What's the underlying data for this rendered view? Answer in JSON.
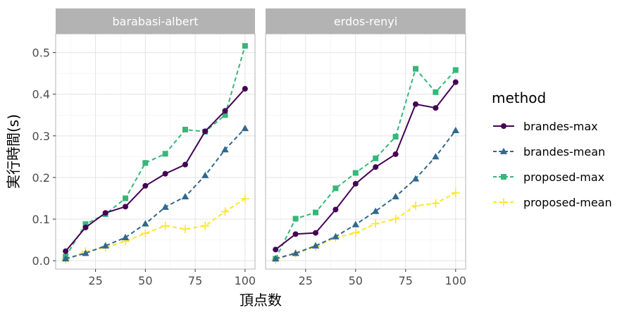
{
  "chart_data": {
    "type": "line",
    "xlabel": "頂点数",
    "ylabel": "実行時間(s)",
    "xlim": [
      5,
      105
    ],
    "ylim": [
      -0.02,
      0.545
    ],
    "x_ticks": [
      25,
      50,
      75,
      100
    ],
    "y_ticks": [
      0.0,
      0.1,
      0.2,
      0.3,
      0.4,
      0.5
    ],
    "y_tick_labels": [
      "0.0",
      "0.1",
      "0.2",
      "0.3",
      "0.4",
      "0.5"
    ],
    "grid": true,
    "legend": {
      "title": "method",
      "placement": "right",
      "entries": [
        "brandes-max",
        "brandes-mean",
        "proposed-max",
        "proposed-mean"
      ]
    },
    "series_styles": [
      {
        "name": "brandes-max",
        "color": "#440154",
        "dash": "solid",
        "marker": "circle"
      },
      {
        "name": "brandes-mean",
        "color": "#31688e",
        "dash": "dashed",
        "marker": "triangle"
      },
      {
        "name": "proposed-max",
        "color": "#35b779",
        "dash": "dashed",
        "marker": "square"
      },
      {
        "name": "proposed-mean",
        "color": "#fde725",
        "dash": "dashed",
        "marker": "plus"
      }
    ],
    "panels": [
      {
        "title": "barabasi-albert",
        "x": [
          10,
          20,
          30,
          40,
          50,
          60,
          70,
          80,
          90,
          100
        ],
        "series": [
          {
            "name": "brandes-max",
            "values": [
              0.023,
              0.08,
              0.115,
              0.13,
              0.18,
              0.209,
              0.231,
              0.311,
              0.36,
              0.413
            ]
          },
          {
            "name": "brandes-mean",
            "values": [
              0.005,
              0.018,
              0.036,
              0.056,
              0.089,
              0.129,
              0.154,
              0.205,
              0.267,
              0.318
            ]
          },
          {
            "name": "proposed-max",
            "values": [
              0.01,
              0.088,
              0.112,
              0.15,
              0.235,
              0.257,
              0.315,
              0.31,
              0.35,
              0.516
            ]
          },
          {
            "name": "proposed-mean",
            "values": [
              0.003,
              0.022,
              0.032,
              0.047,
              0.066,
              0.084,
              0.076,
              0.084,
              0.118,
              0.149
            ]
          }
        ]
      },
      {
        "title": "erdos-renyi",
        "x": [
          10,
          20,
          30,
          40,
          50,
          60,
          70,
          80,
          90,
          100
        ],
        "series": [
          {
            "name": "brandes-max",
            "values": [
              0.027,
              0.064,
              0.067,
              0.123,
              0.185,
              0.225,
              0.256,
              0.376,
              0.367,
              0.429
            ]
          },
          {
            "name": "brandes-mean",
            "values": [
              0.005,
              0.018,
              0.036,
              0.058,
              0.087,
              0.119,
              0.154,
              0.197,
              0.25,
              0.313
            ]
          },
          {
            "name": "proposed-max",
            "values": [
              0.005,
              0.101,
              0.116,
              0.174,
              0.211,
              0.246,
              0.298,
              0.461,
              0.405,
              0.458
            ]
          },
          {
            "name": "proposed-mean",
            "values": [
              0.003,
              0.018,
              0.034,
              0.056,
              0.067,
              0.089,
              0.1,
              0.132,
              0.138,
              0.163
            ]
          }
        ]
      }
    ]
  }
}
